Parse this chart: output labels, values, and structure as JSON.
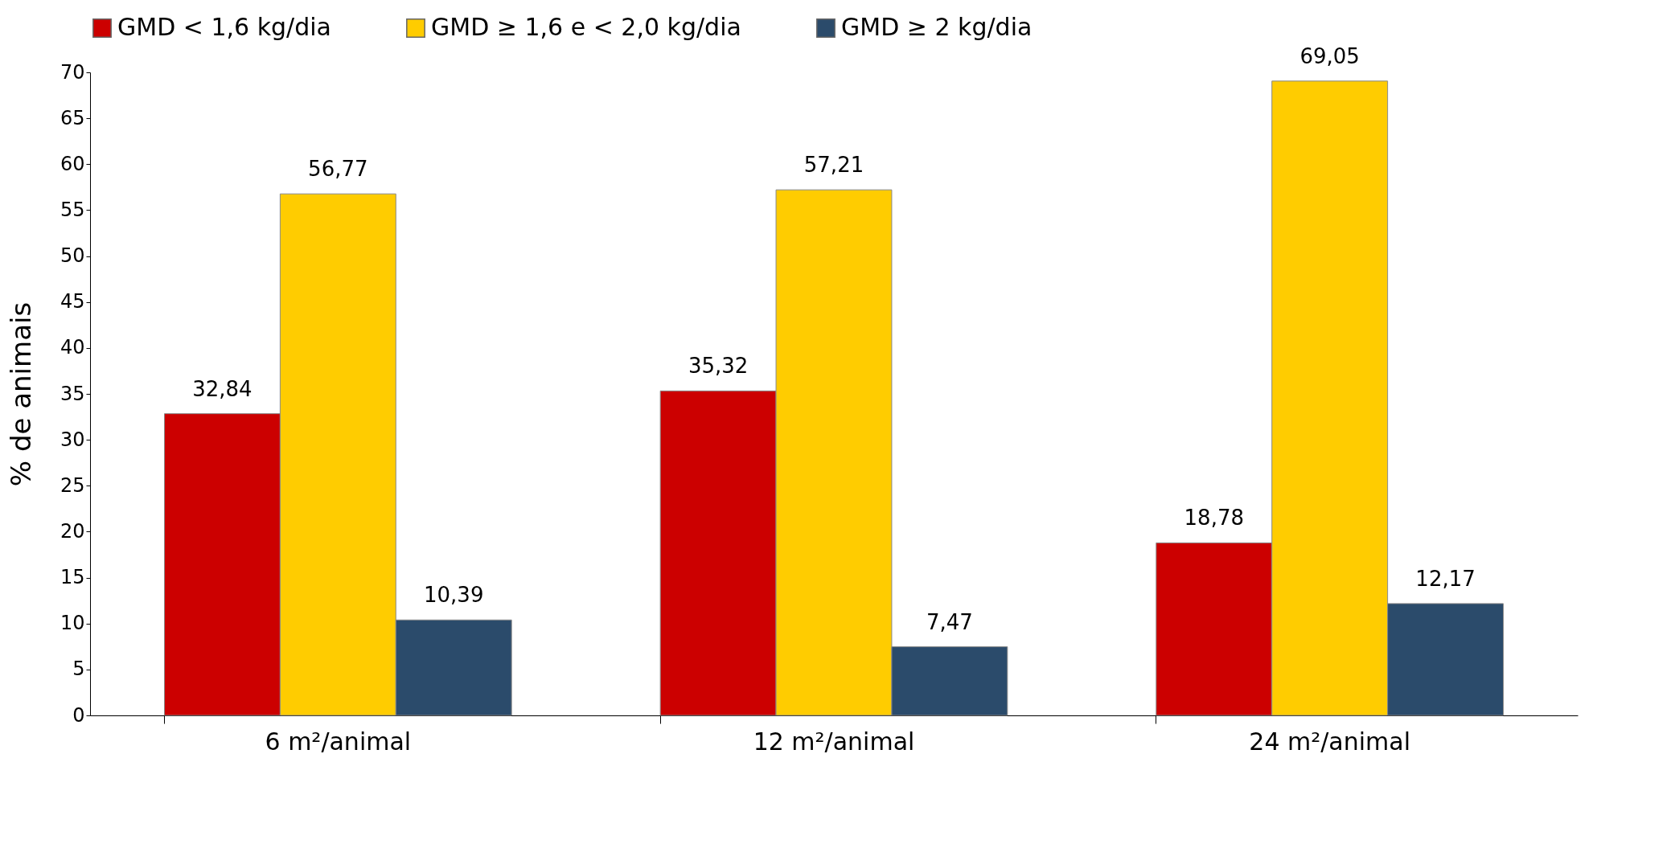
{
  "chart_data": {
    "type": "bar",
    "ylabel": "% de animais",
    "categories": [
      "6 m²/animal",
      "12 m²/animal",
      "24 m²/animal"
    ],
    "series": [
      {
        "name": "GMD < 1,6 kg/dia",
        "color": "#cc0000",
        "values": [
          32.84,
          35.32,
          18.78
        ],
        "value_labels": [
          "32,84",
          "35,32",
          "18,78"
        ]
      },
      {
        "name": "GMD ≥ 1,6 e < 2,0 kg/dia",
        "color": "#ffcc00",
        "values": [
          56.77,
          57.21,
          69.05
        ],
        "value_labels": [
          "56,77",
          "57,21",
          "69,05"
        ]
      },
      {
        "name": "GMD ≥ 2 kg/dia",
        "color": "#2b4b6b",
        "values": [
          10.39,
          7.47,
          12.17
        ],
        "value_labels": [
          "10,39",
          "7,47",
          "12,17"
        ]
      }
    ],
    "ylim": [
      0,
      70
    ],
    "yticks": [
      0,
      5,
      10,
      15,
      20,
      25,
      30,
      35,
      40,
      45,
      50,
      55,
      60,
      65,
      70
    ],
    "legend": "top"
  }
}
